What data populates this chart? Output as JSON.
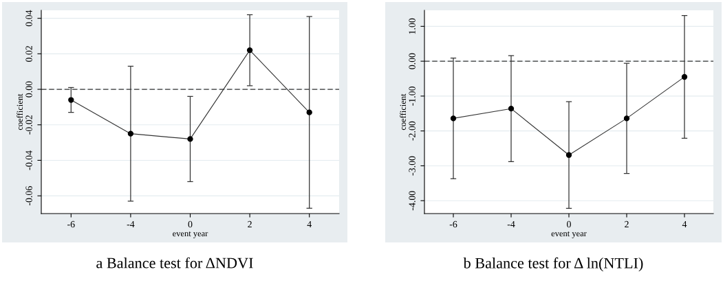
{
  "chart_data": [
    {
      "type": "line",
      "title": "a Balance test for ΔNDVI",
      "xlabel": "event year",
      "ylabel": "coefficient",
      "categories": [
        "-6",
        "-4",
        "0",
        "2",
        "4"
      ],
      "series": [
        {
          "color": "#000000",
          "values": [
            -0.006,
            -0.025,
            -0.028,
            0.022,
            -0.013
          ],
          "errors": [
            0.007,
            0.038,
            0.024,
            0.02,
            0.054
          ]
        }
      ],
      "ylim": [
        -0.07,
        0.0445
      ],
      "yticks": [
        {
          "value": -0.06,
          "label": "-0.06"
        },
        {
          "value": -0.04,
          "label": "-0.04"
        },
        {
          "value": -0.02,
          "label": "-0.02"
        },
        {
          "value": 0,
          "label": "0.00"
        },
        {
          "value": 0.02,
          "label": "0.02"
        },
        {
          "value": 0.04,
          "label": "0.04"
        }
      ],
      "ref_lines": [
        {
          "axis": "y",
          "value": 0,
          "line_style": "dashed",
          "color": "#333333"
        }
      ],
      "grid": "y",
      "marker": "circle",
      "line_style": "solid",
      "legend": false
    },
    {
      "type": "line",
      "title": "b Balance test for Δ ln(NTLI)",
      "xlabel": "event year",
      "ylabel": "coefficient",
      "categories": [
        "-6",
        "-4",
        "0",
        "2",
        "4"
      ],
      "series": [
        {
          "color": "#000000",
          "values": [
            -1.64,
            -1.36,
            -2.69,
            -1.64,
            -0.45
          ],
          "errors": [
            1.73,
            1.52,
            1.53,
            1.58,
            1.76
          ]
        }
      ],
      "ylim": [
        -4.37,
        1.46
      ],
      "yticks": [
        {
          "value": -4,
          "label": "-4.00"
        },
        {
          "value": -3,
          "label": "-3.00"
        },
        {
          "value": -2,
          "label": "-2.00"
        },
        {
          "value": -1,
          "label": "-1.00"
        },
        {
          "value": 0,
          "label": "0.00"
        },
        {
          "value": 1,
          "label": "1.00"
        }
      ],
      "ref_lines": [
        {
          "axis": "y",
          "value": 0,
          "line_style": "dashed",
          "color": "#333333"
        }
      ],
      "grid": "y",
      "marker": "circle",
      "line_style": "solid",
      "legend": false
    }
  ]
}
